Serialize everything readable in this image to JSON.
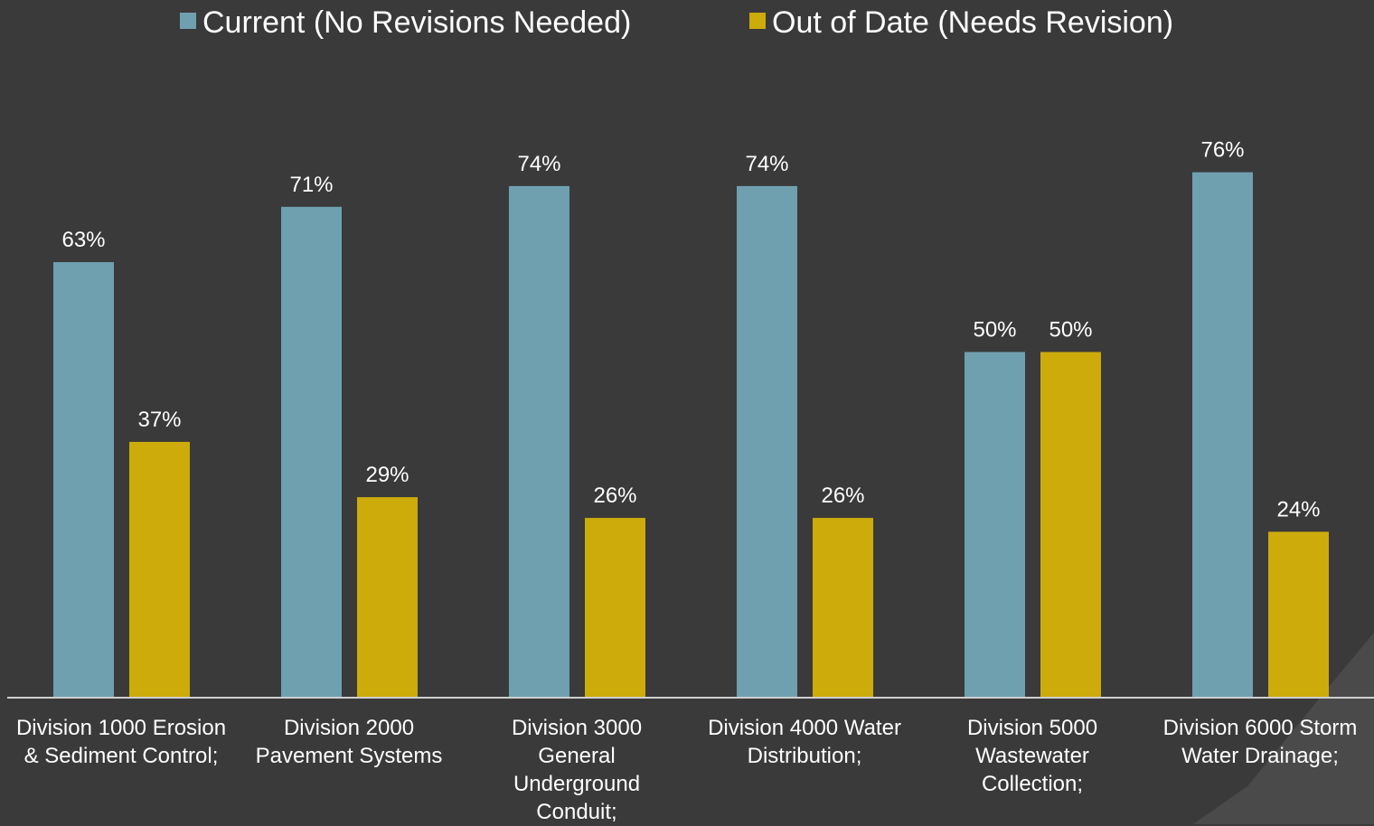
{
  "chart_data": {
    "type": "bar",
    "categories": [
      "Division 1000 Erosion & Sediment Control;",
      "Division 2000 Pavement Systems",
      "Division 3000 General Underground Conduit;",
      "Division 4000 Water Distribution;",
      "Division 5000 Wastewater Collection;",
      "Division 6000 Storm Water Drainage;"
    ],
    "series": [
      {
        "name": "Current (No Revisions Needed)",
        "color": "#6fa0b0",
        "values": [
          63,
          71,
          74,
          74,
          50,
          76
        ],
        "value_labels": [
          "63%",
          "71%",
          "74%",
          "74%",
          "50%",
          "76%"
        ]
      },
      {
        "name": "Out of Date (Needs Revision)",
        "color": "#ccab0b",
        "values": [
          37,
          29,
          26,
          26,
          50,
          24
        ],
        "value_labels": [
          "37%",
          "29%",
          "26%",
          "26%",
          "50%",
          "24%"
        ]
      }
    ],
    "ylim": [
      0,
      100
    ],
    "legend": "top"
  }
}
